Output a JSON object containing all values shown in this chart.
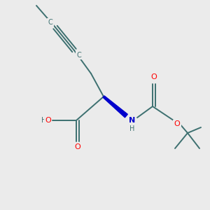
{
  "bg_color": "#ebebeb",
  "bond_color": "#3d7070",
  "atom_colors": {
    "O": "#ff0000",
    "N": "#0000cc",
    "H": "#3d7070",
    "C": "#3d7070"
  },
  "fig_size": [
    3.0,
    3.0
  ],
  "dpi": 100,
  "lw": 1.4,
  "fs": 8.0,
  "fs_small": 7.0
}
